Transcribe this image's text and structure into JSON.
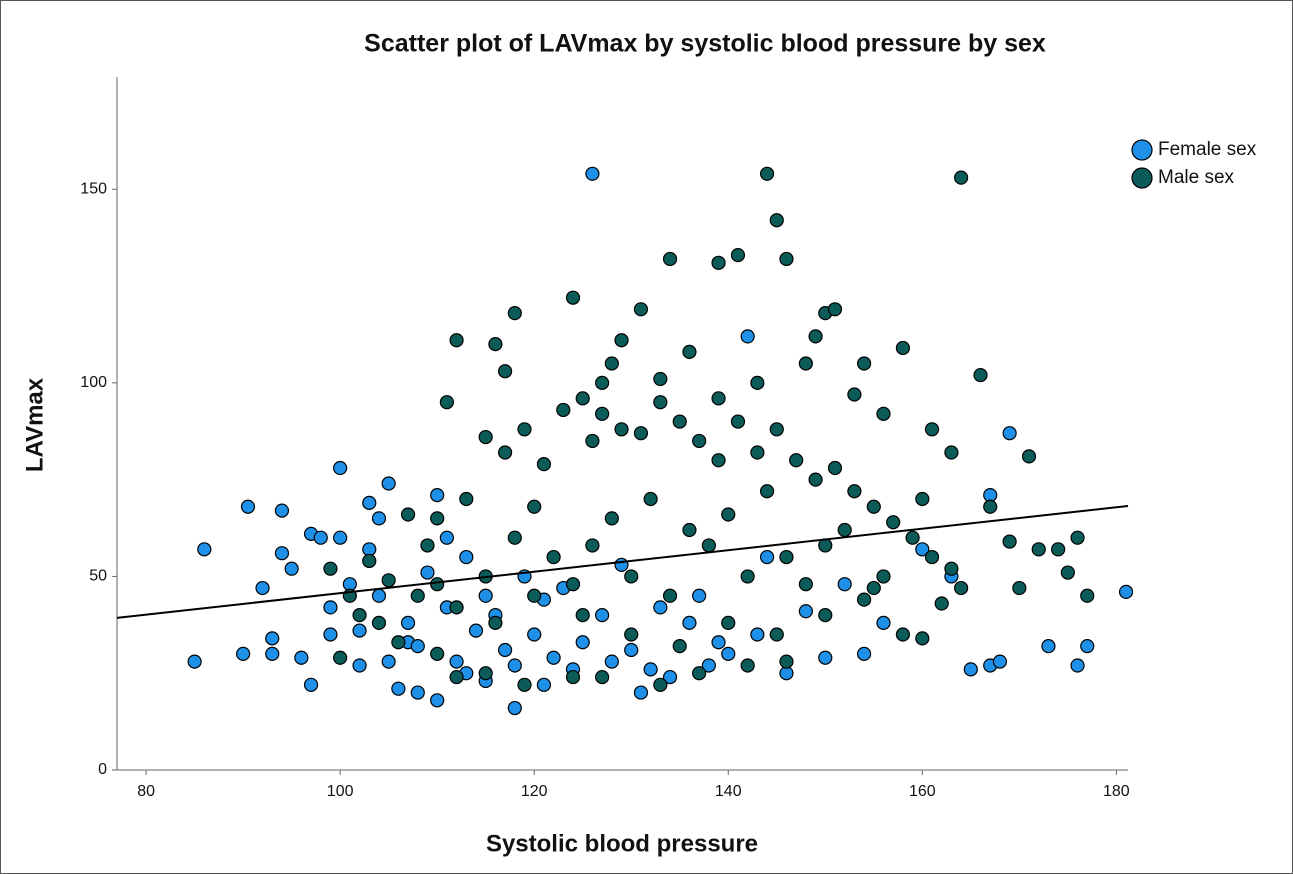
{
  "chart_data": {
    "type": "scatter",
    "title": "Scatter plot of LAVmax by systolic blood pressure by sex",
    "x_label": "Systolic blood pressure",
    "y_label": "LAVmax",
    "xlim": [
      77,
      181.2
    ],
    "ylim": [
      0,
      179
    ],
    "xticks": [
      80,
      100,
      120,
      140,
      160,
      180
    ],
    "yticks": [
      0,
      50,
      100,
      150
    ],
    "grid": false,
    "legend": "upper right",
    "fit_line": {
      "x": [
        77,
        181.2
      ],
      "y": [
        39.3,
        68.2
      ],
      "color": "#000000"
    },
    "series": [
      {
        "name": "Female sex",
        "color": "#1e90e8",
        "x": [
          85,
          86,
          90.5,
          90,
          92,
          93,
          93,
          94,
          94,
          95,
          96,
          97,
          97,
          98,
          99,
          100,
          100,
          101,
          102,
          103,
          103,
          104,
          105,
          105,
          106,
          107,
          107,
          108,
          109,
          110,
          110,
          111,
          112,
          113,
          114,
          115,
          116,
          117,
          118,
          118,
          120,
          121,
          122,
          124,
          125,
          126,
          127,
          128,
          130,
          131,
          133,
          134,
          136,
          138,
          140,
          142,
          143,
          146,
          148,
          150,
          152,
          154,
          156,
          160,
          163,
          165,
          167,
          167,
          168,
          169,
          173,
          176,
          177,
          181,
          113,
          119,
          123,
          129,
          137,
          144,
          108,
          104,
          102,
          99,
          111,
          115,
          121,
          132,
          139
        ],
        "values": [
          28,
          57,
          68,
          30,
          47,
          30,
          34,
          67,
          56,
          52,
          29,
          22,
          61,
          60,
          42,
          78,
          60,
          48,
          36,
          69,
          57,
          45,
          74,
          28,
          21,
          38,
          33,
          20,
          51,
          18,
          71,
          60,
          28,
          25,
          36,
          23,
          40,
          31,
          27,
          16,
          35,
          44,
          29,
          26,
          33,
          154,
          40,
          28,
          31,
          20,
          42,
          24,
          38,
          27,
          30,
          112,
          35,
          25,
          41,
          29,
          48,
          30,
          38,
          57,
          50,
          26,
          27,
          71,
          28,
          87,
          32,
          27,
          32,
          46,
          55,
          50,
          47,
          53,
          45,
          55,
          32,
          65,
          27,
          35,
          42,
          45,
          22,
          26,
          33
        ]
      },
      {
        "name": "Male sex",
        "color": "#0b5c58",
        "x": [
          144,
          164,
          145,
          141,
          134,
          139,
          146,
          124,
          118,
          131,
          150,
          151,
          116,
          112,
          129,
          158,
          128,
          136,
          149,
          166,
          117,
          154,
          143,
          148,
          127,
          111,
          133,
          139,
          153,
          156,
          161,
          163,
          171,
          160,
          167,
          169,
          174,
          176,
          170,
          175,
          177,
          172,
          164,
          162,
          158,
          160,
          146,
          142,
          137,
          133,
          127,
          124,
          119,
          115,
          112,
          110,
          106,
          104,
          102,
          100,
          101,
          99,
          103,
          105,
          107,
          109,
          110,
          113,
          115,
          117,
          119,
          121,
          123,
          125,
          126,
          127,
          129,
          131,
          133,
          135,
          137,
          139,
          141,
          143,
          145,
          147,
          149,
          151,
          153,
          155,
          157,
          159,
          161,
          163,
          155,
          150,
          145,
          140,
          135,
          130,
          125,
          120,
          115,
          112,
          118,
          122,
          128,
          132,
          136,
          138,
          142,
          146,
          148,
          152,
          156,
          124,
          130,
          134,
          126,
          120,
          116,
          140,
          144,
          150,
          154,
          110,
          108
        ],
        "values": [
          154,
          153,
          142,
          133,
          132,
          131,
          132,
          122,
          118,
          119,
          118,
          119,
          110,
          111,
          111,
          109,
          105,
          108,
          112,
          102,
          103,
          105,
          100,
          105,
          100,
          95,
          101,
          96,
          97,
          92,
          88,
          82,
          81,
          70,
          68,
          59,
          57,
          60,
          47,
          51,
          45,
          57,
          47,
          43,
          35,
          34,
          28,
          27,
          25,
          22,
          24,
          24,
          22,
          25,
          24,
          30,
          33,
          38,
          40,
          29,
          45,
          52,
          54,
          49,
          66,
          58,
          65,
          70,
          86,
          82,
          88,
          79,
          93,
          96,
          85,
          92,
          88,
          87,
          95,
          90,
          85,
          80,
          90,
          82,
          88,
          80,
          75,
          78,
          72,
          68,
          64,
          60,
          55,
          52,
          47,
          40,
          35,
          38,
          32,
          35,
          40,
          45,
          50,
          42,
          60,
          55,
          65,
          70,
          62,
          58,
          50,
          55,
          48,
          62,
          50,
          48,
          50,
          45,
          58,
          68,
          38,
          66,
          72,
          58,
          44,
          48,
          45
        ]
      }
    ]
  }
}
